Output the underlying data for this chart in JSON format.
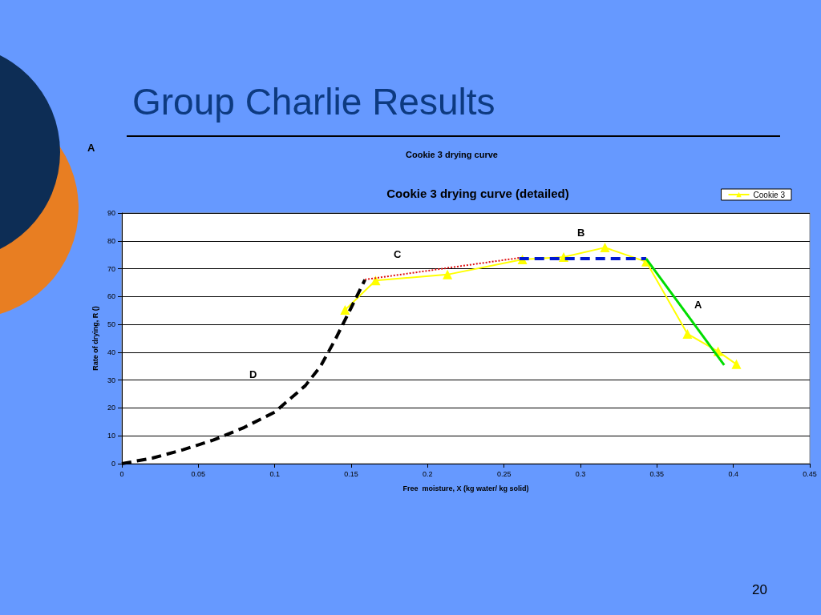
{
  "chart_data": {
    "type": "line",
    "title": "Group Charlie Results",
    "subtitle": "Cookie 3 drying curve (detailed)",
    "xlabel": "Free  moisture, X (kg water/ kg solid)",
    "ylabel": "Rate of drying, R ()",
    "annotations": [
      "A",
      "Cookie 3 drying curve",
      "20",
      "B",
      "C",
      "A",
      "D"
    ],
    "series": [
      {
        "name": "Cookie 3",
        "color": "#ffff00",
        "marker": "triangle",
        "x": [
          0.146,
          0.166,
          0.213,
          0.262,
          0.289,
          0.316,
          0.343,
          0.37,
          0.39,
          0.402
        ],
        "values": [
          55.2,
          65.8,
          67.9,
          73.3,
          74.2,
          77.6,
          72.5,
          46.6,
          40.3,
          35.7
        ]
      },
      {
        "color": "#000000",
        "line_style": "dashed",
        "x": [
          0,
          0.02,
          0.04,
          0.06,
          0.08,
          0.1,
          0.12,
          0.13,
          0.14,
          0.15,
          0.159
        ],
        "values": [
          0,
          2,
          5,
          8.5,
          13,
          18.5,
          28,
          35,
          45,
          56,
          66
        ]
      },
      {
        "color": "#e01010",
        "line_style": "dotted",
        "x": [
          0.159,
          0.26
        ],
        "values": [
          66.1,
          73.9
        ]
      },
      {
        "color": "#0018d0",
        "line_style": "dashed",
        "x": [
          0.26,
          0.343
        ],
        "values": [
          73.6,
          73.6
        ]
      },
      {
        "color": "#00dd00",
        "line_style": "solid",
        "x": [
          0.343,
          0.394
        ],
        "values": [
          73.6,
          35.4
        ]
      }
    ],
    "xlim": [
      0,
      0.45
    ],
    "xticks": [
      0,
      0.05,
      0.1,
      0.15,
      0.2,
      0.25,
      0.3,
      0.35,
      0.4,
      0.45
    ],
    "ylim": [
      0,
      90
    ],
    "yticks": [
      0,
      10,
      20,
      30,
      40,
      50,
      60,
      70,
      80,
      90
    ],
    "grid": "y",
    "legend": "top right"
  }
}
